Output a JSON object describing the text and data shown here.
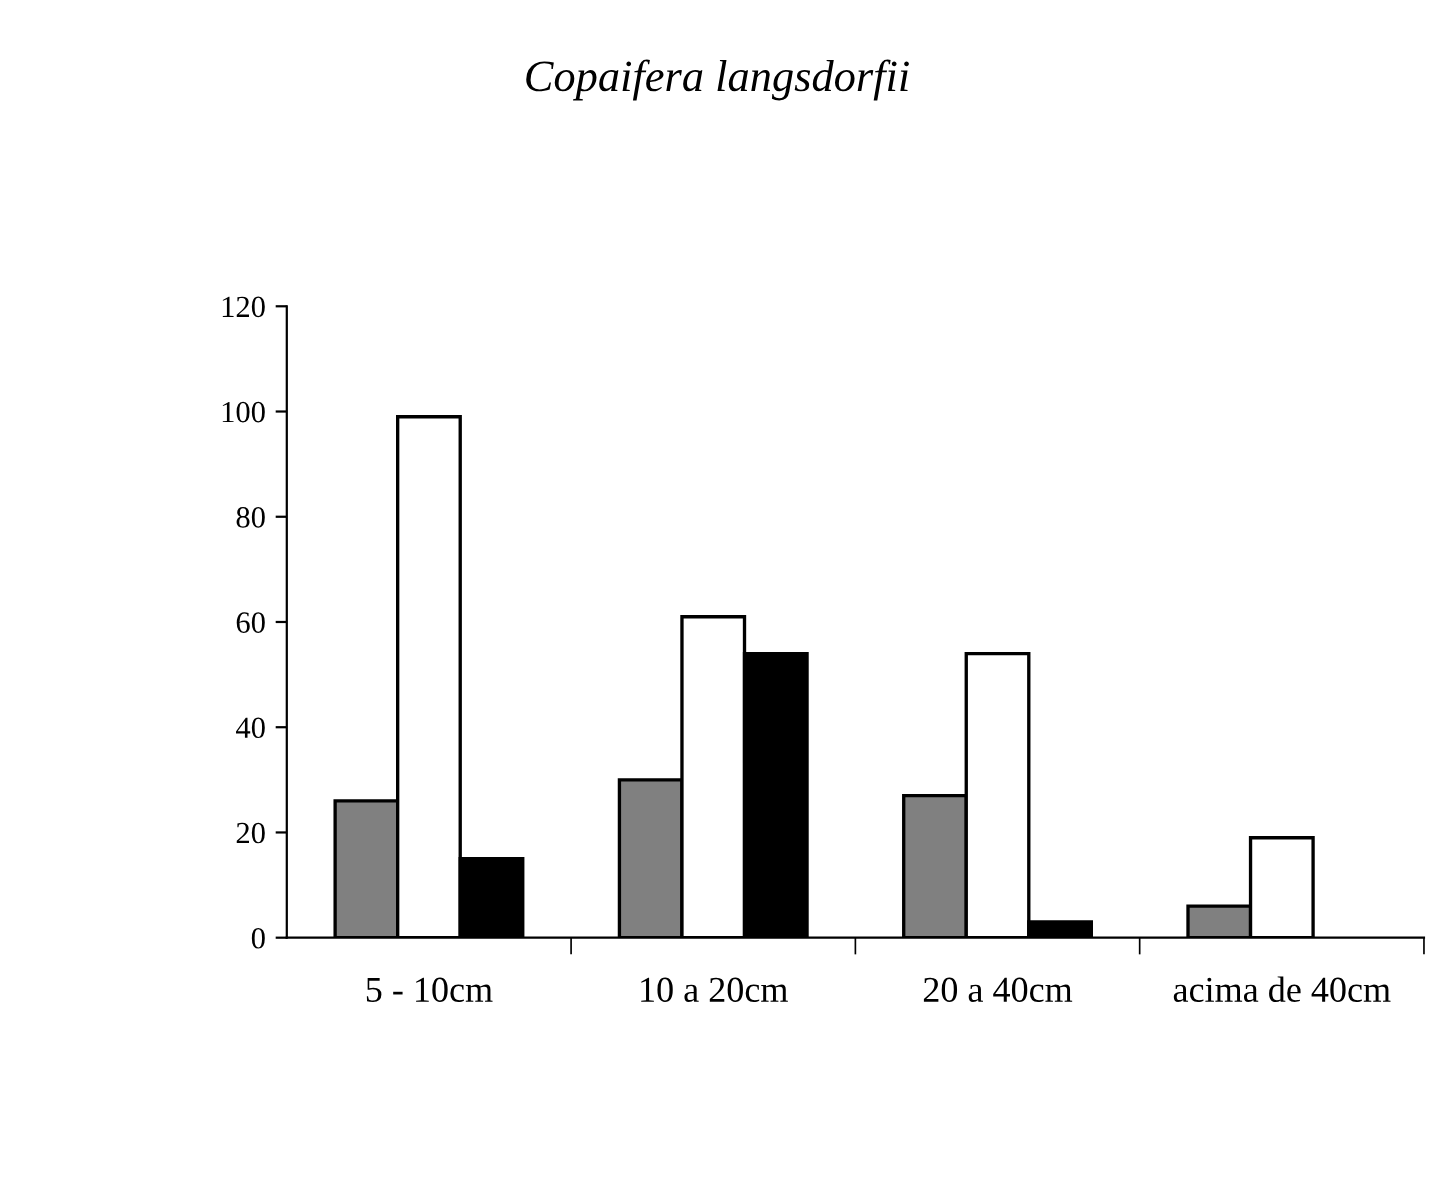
{
  "chart_data": {
    "type": "bar",
    "title": "Copaifera langsdorfii",
    "categories": [
      "5 - 10cm",
      "10 a 20cm",
      "20 a 40cm",
      "acima de 40cm"
    ],
    "series": [
      {
        "color": "#808080",
        "values": [
          26,
          30,
          27,
          6
        ]
      },
      {
        "color": "#ffffff",
        "values": [
          99,
          61,
          54,
          19
        ]
      },
      {
        "color": "#000000",
        "values": [
          15,
          54,
          3,
          null
        ]
      }
    ],
    "ylim": [
      0,
      120
    ],
    "yticks": [
      0,
      20,
      40,
      60,
      80,
      100,
      120
    ],
    "grid": false
  }
}
